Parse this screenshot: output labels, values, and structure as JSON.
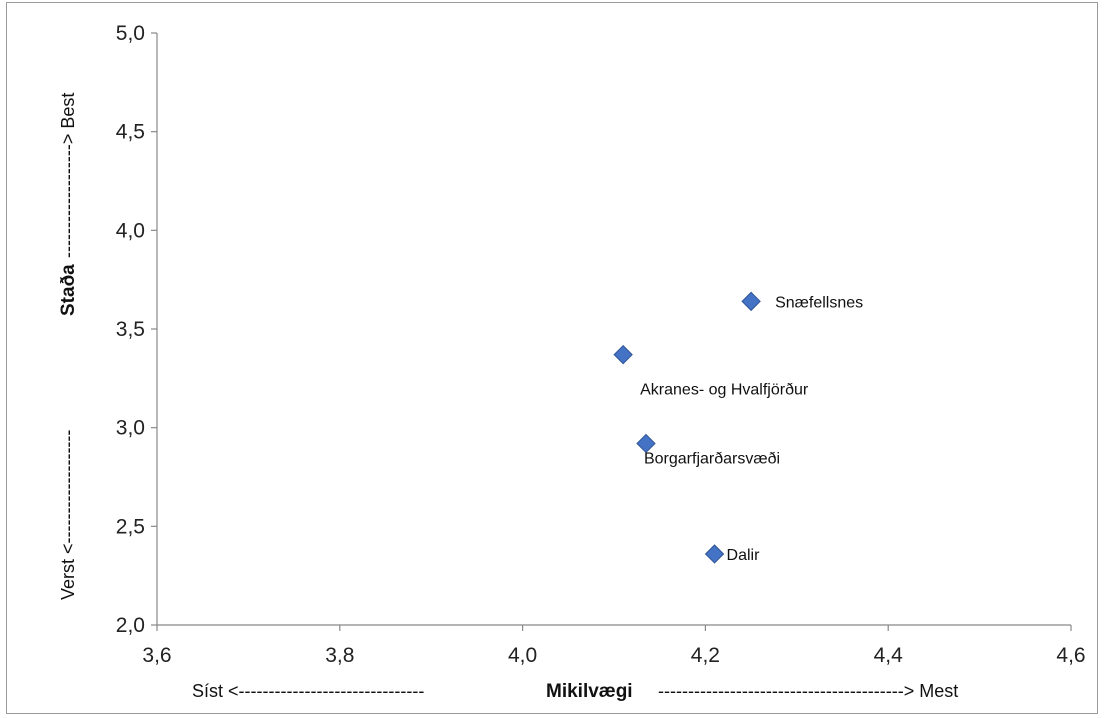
{
  "chart_data": {
    "type": "scatter",
    "x_axis": {
      "range": [
        3.6,
        4.6
      ],
      "ticks": [
        3.6,
        3.8,
        4.0,
        4.2,
        4.4,
        4.6
      ],
      "tick_labels": [
        "3,6",
        "3,8",
        "4,0",
        "4,2",
        "4,4",
        "4,6"
      ],
      "label_left": "Síst <-------------------------------",
      "label_center": "Mikilvægi",
      "label_right": "-----------------------------------------> Mest"
    },
    "y_axis": {
      "range": [
        2.0,
        5.0
      ],
      "ticks": [
        2.0,
        2.5,
        3.0,
        3.5,
        4.0,
        4.5,
        5.0
      ],
      "tick_labels": [
        "2,0",
        "2,5",
        "3,0",
        "3,5",
        "4,0",
        "4,5",
        "5,0"
      ],
      "label_bottom": "Verst <-------------------",
      "label_center": "Staða",
      "label_top": "-------------------> Best"
    },
    "grid": false,
    "marker": "diamond",
    "marker_color": "#4472C4",
    "points": [
      {
        "label": "Snæfellsnes",
        "x": 4.25,
        "y": 3.64
      },
      {
        "label": "Akranes- og Hvalfjörður",
        "x": 4.11,
        "y": 3.37
      },
      {
        "label": "Borgarfjarðarsvæði",
        "x": 4.135,
        "y": 2.92
      },
      {
        "label": "Dalir",
        "x": 4.21,
        "y": 2.36
      }
    ]
  }
}
